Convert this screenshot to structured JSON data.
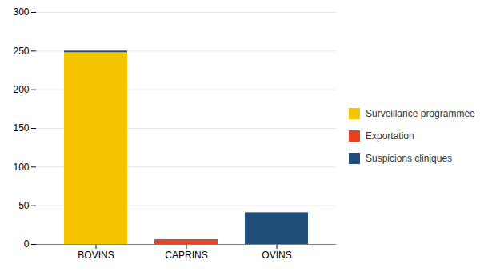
{
  "chart_data": {
    "type": "bar",
    "stacked": true,
    "categories": [
      "BOVINS",
      "CAPRINS",
      "OVINS"
    ],
    "series": [
      {
        "name": "Surveillance programmée",
        "color": "#F5C400",
        "values": [
          248,
          0,
          0
        ]
      },
      {
        "name": "Exportation",
        "color": "#E8401C",
        "values": [
          0,
          5,
          0
        ]
      },
      {
        "name": "Suspicions cliniques",
        "color": "#1F4E79",
        "values": [
          2,
          1,
          41
        ]
      }
    ],
    "ylim": [
      0,
      300
    ],
    "yticks": [
      0,
      50,
      100,
      150,
      200,
      250,
      300
    ],
    "grid": true,
    "legend": "right"
  }
}
